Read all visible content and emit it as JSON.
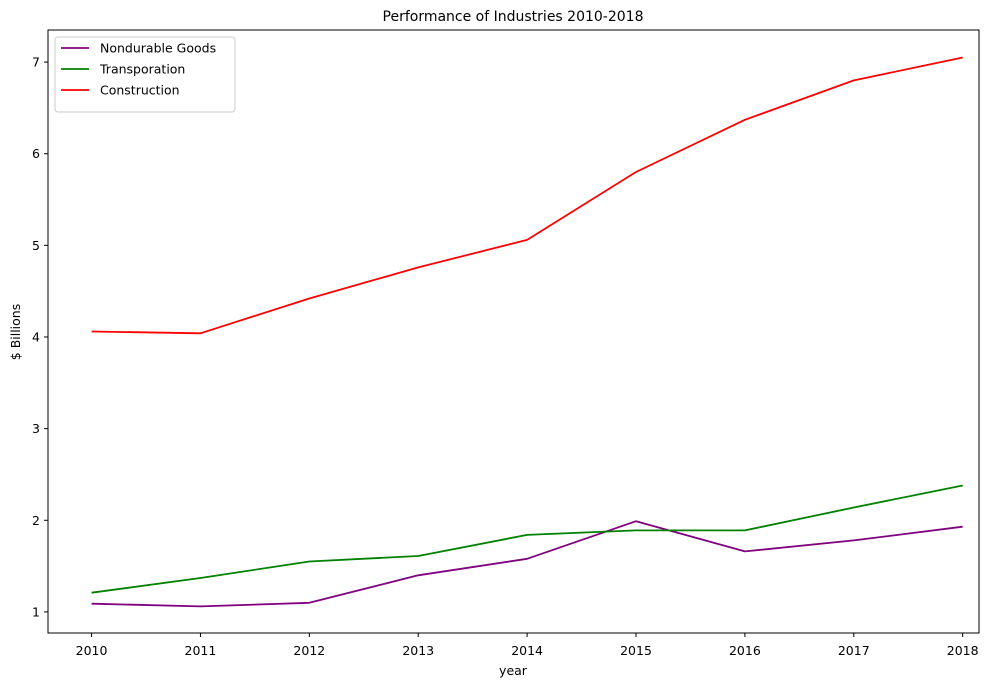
{
  "chart_data": {
    "type": "line",
    "title": "Performance of Industries 2010-2018",
    "xlabel": "year",
    "ylabel": "$ Billions",
    "x": [
      2010,
      2011,
      2012,
      2013,
      2014,
      2015,
      2016,
      2017,
      2018
    ],
    "xticks": [
      "2010",
      "2011",
      "2012",
      "2013",
      "2014",
      "2015",
      "2016",
      "2017",
      "2018"
    ],
    "yticks": [
      "1",
      "2",
      "3",
      "4",
      "5",
      "6",
      "7"
    ],
    "xlim": [
      2009.6,
      2018.15
    ],
    "ylim": [
      0.77,
      7.35
    ],
    "grid": false,
    "legend_position": "upper-left",
    "series": [
      {
        "name": "Nondurable Goods",
        "color": "#800080",
        "values": [
          1.09,
          1.06,
          1.1,
          1.4,
          1.58,
          1.99,
          1.66,
          1.78,
          1.93
        ]
      },
      {
        "name": "Transporation",
        "color": "#008000",
        "values": [
          1.21,
          1.37,
          1.55,
          1.61,
          1.84,
          1.89,
          1.89,
          2.14,
          2.38
        ]
      },
      {
        "name": "Construction",
        "color": "#ff0000",
        "values": [
          4.06,
          4.04,
          4.42,
          4.76,
          5.06,
          5.8,
          6.37,
          6.8,
          7.05
        ]
      }
    ]
  }
}
